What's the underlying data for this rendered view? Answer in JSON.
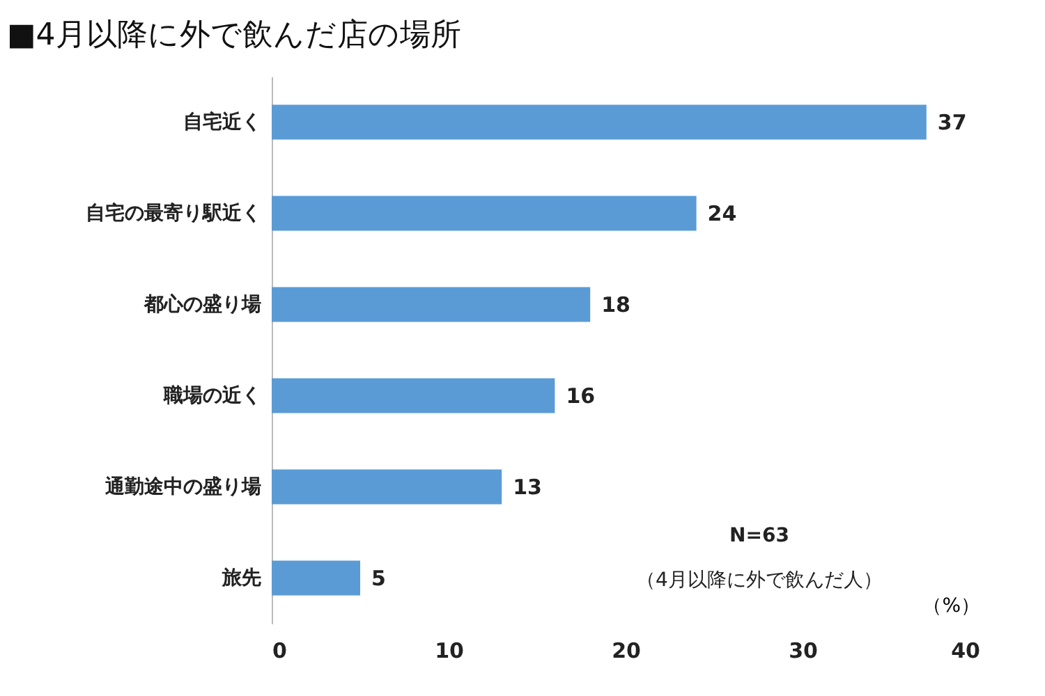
{
  "chart_data": {
    "type": "bar",
    "orientation": "horizontal",
    "title": "■4月以降に外で飲んだ店の場所",
    "xlabel": "（%）",
    "categories": [
      "自宅近く",
      "自宅の最寄り駅近く",
      "都心の盛り場",
      "職場の近く",
      "通勤途中の盛り場",
      "旅先"
    ],
    "values": [
      37,
      24,
      18,
      16,
      13,
      5
    ],
    "color": "#5b9bd5",
    "xlim": [
      0,
      40
    ],
    "xticks": [
      0,
      10,
      20,
      30,
      40
    ],
    "grid": false,
    "data_labels": true,
    "annotations": [
      "N=63",
      "（4月以降に外で飲んだ人）"
    ]
  }
}
